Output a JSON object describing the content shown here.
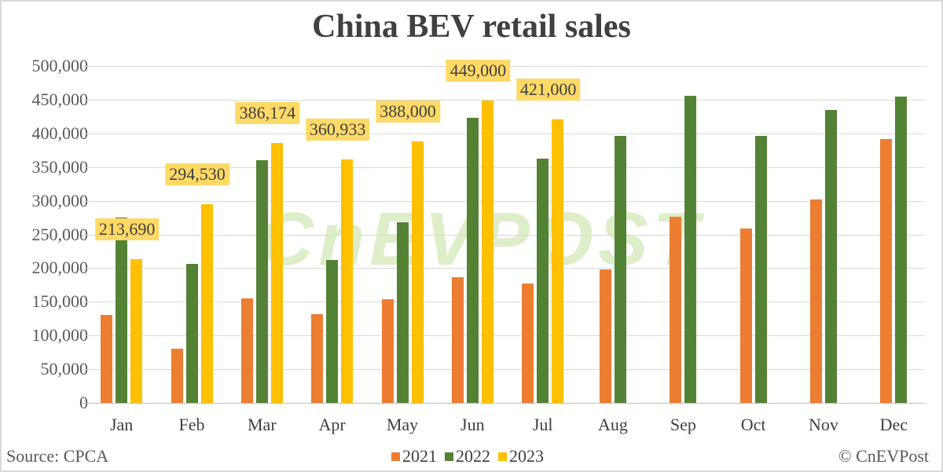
{
  "chart_data": {
    "type": "bar",
    "title": "China BEV retail sales",
    "xlabel": "",
    "ylabel": "",
    "ylim": [
      0,
      500000
    ],
    "yticks": [
      0,
      50000,
      100000,
      150000,
      200000,
      250000,
      300000,
      350000,
      400000,
      450000,
      500000
    ],
    "ytick_labels": [
      "0",
      "50,000",
      "100,000",
      "150,000",
      "200,000",
      "250,000",
      "300,000",
      "350,000",
      "400,000",
      "450,000",
      "500,000"
    ],
    "grid": true,
    "legend_position": "bottom",
    "categories": [
      "Jan",
      "Feb",
      "Mar",
      "Apr",
      "May",
      "Jun",
      "Jul",
      "Aug",
      "Sep",
      "Oct",
      "Nov",
      "Dec"
    ],
    "series": [
      {
        "name": "2021",
        "color": "#ed7d31",
        "values": [
          130000,
          81000,
          155000,
          132000,
          154000,
          186000,
          177000,
          198000,
          276000,
          259000,
          302000,
          392000
        ]
      },
      {
        "name": "2022",
        "color": "#548235",
        "values": [
          275000,
          206000,
          360000,
          212000,
          268000,
          423000,
          362000,
          396000,
          456000,
          396000,
          435000,
          455000
        ]
      },
      {
        "name": "2023",
        "color": "#ffc000",
        "values": [
          213690,
          294530,
          386174,
          360933,
          388000,
          449000,
          421000,
          null,
          null,
          null,
          null,
          null
        ]
      }
    ],
    "data_labels": {
      "series": "2023",
      "labels": [
        "213,690",
        "294,530",
        "386,174",
        "360,933",
        "388,000",
        "449,000",
        "421,000"
      ]
    },
    "annotations": [
      "Source: CPCA",
      "© CnEVPost"
    ],
    "watermark": "CnEVPOST"
  },
  "footer": {
    "source": "Source: CPCA",
    "credit": "© CnEVPost"
  },
  "legend": [
    {
      "label": "2021",
      "color": "#ed7d31"
    },
    {
      "label": "2022",
      "color": "#548235"
    },
    {
      "label": "2023",
      "color": "#ffc000"
    }
  ]
}
